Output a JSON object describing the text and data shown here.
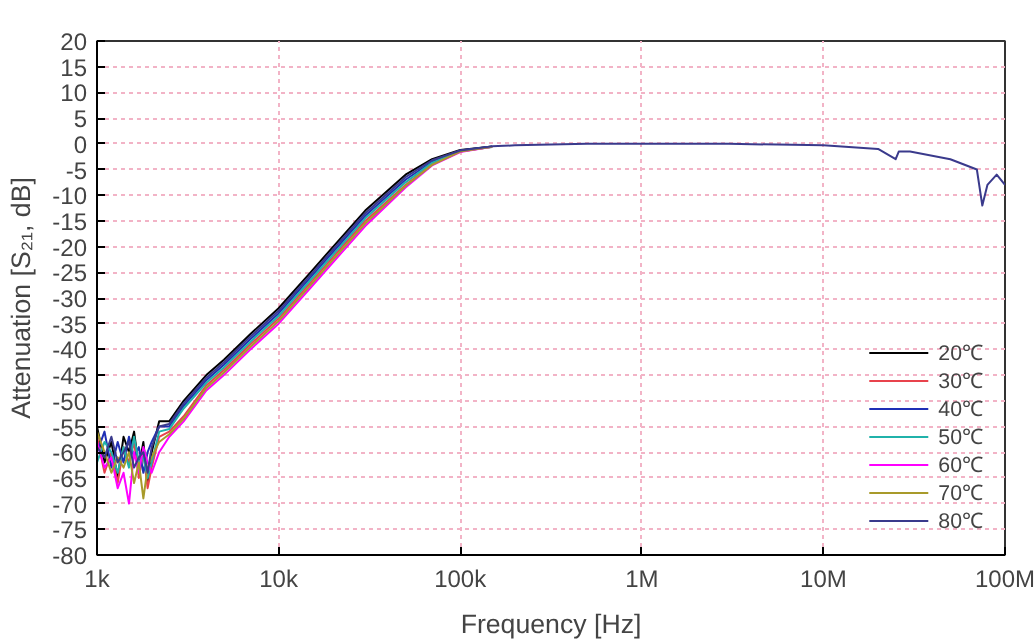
{
  "chart_data": {
    "type": "line",
    "xlabel": "Frequency [Hz]",
    "ylabel": "Attenuation [S₂₁, dB]",
    "log": "x",
    "xlim": [
      1000,
      100000000
    ],
    "ylim": [
      -80,
      20
    ],
    "xticks": [
      {
        "value": 1000,
        "label": "1k"
      },
      {
        "value": 10000,
        "label": "10k"
      },
      {
        "value": 100000,
        "label": "100k"
      },
      {
        "value": 1000000,
        "label": "1M"
      },
      {
        "value": 10000000,
        "label": "10M"
      },
      {
        "value": 100000000,
        "label": "100M"
      }
    ],
    "yticks": [
      -80,
      -75,
      -70,
      -65,
      -60,
      -55,
      -50,
      -45,
      -40,
      -35,
      -30,
      -25,
      -20,
      -15,
      -10,
      -5,
      0,
      5,
      10,
      15,
      20
    ],
    "grid": true,
    "legend": "bottom right",
    "marker": "none",
    "line_style": "solid",
    "x": [
      1000,
      1100,
      1200,
      1300,
      1400,
      1500,
      1600,
      1700,
      1800,
      1900,
      2000,
      2200,
      2500,
      3000,
      4000,
      5000,
      7000,
      10000,
      15000,
      20000,
      30000,
      50000,
      70000,
      100000,
      150000,
      200000,
      500000,
      1000000,
      3000000,
      10000000,
      20000000,
      25000000,
      26000000,
      30000000,
      50000000,
      70000000,
      75000000,
      80000000,
      90000000,
      100000000
    ],
    "series": [
      {
        "name": "20℃",
        "color": "#000000",
        "values": [
          -55,
          -62,
          -58,
          -65,
          -57,
          -60,
          -56,
          -63,
          -58,
          -66,
          -60,
          -54,
          -54,
          -50,
          -45,
          -42,
          -37,
          -32,
          -25,
          -20,
          -13,
          -6,
          -3,
          -1.2,
          -0.5,
          null,
          null,
          null,
          null,
          null,
          null,
          null,
          null,
          null,
          null,
          null,
          null,
          null,
          null,
          null
        ]
      },
      {
        "name": "30℃",
        "color": "#e8434c",
        "values": [
          -57,
          -64,
          -60,
          -66,
          -59,
          -62,
          -58,
          -65,
          -60,
          -67,
          -63,
          -57,
          -56,
          -53,
          -47,
          -44,
          -39,
          -34,
          -27,
          -22,
          -15,
          -8,
          -4,
          -1.5,
          -0.6,
          null,
          null,
          null,
          null,
          null,
          null,
          null,
          null,
          null,
          null,
          null,
          null,
          null,
          null,
          null
        ]
      },
      {
        "name": "40℃",
        "color": "#1f2fb5",
        "values": [
          -60,
          -56,
          -63,
          -58,
          -62,
          -57,
          -61,
          -59,
          -64,
          -60,
          -58,
          -55,
          -55,
          -51,
          -46,
          -43,
          -38,
          -33,
          -26,
          -21,
          -14,
          -7,
          -3.5,
          -1.3,
          -0.5,
          null,
          null,
          null,
          null,
          null,
          null,
          null,
          null,
          null,
          null,
          null,
          null,
          null,
          null,
          null
        ]
      },
      {
        "name": "50℃",
        "color": "#20b2aa",
        "values": [
          -62,
          -58,
          -60,
          -64,
          -59,
          -63,
          -57,
          -62,
          -61,
          -65,
          -62,
          -56,
          -55.5,
          -51.5,
          -46.5,
          -43.5,
          -38.5,
          -33.5,
          -26.5,
          -21.5,
          -14.5,
          -7.5,
          -3.7,
          -1.4,
          -0.6,
          null,
          null,
          null,
          null,
          null,
          null,
          null,
          null,
          null,
          null,
          null,
          null,
          null,
          null,
          null
        ]
      },
      {
        "name": "60℃",
        "color": "#ff00ff",
        "values": [
          -58,
          -63,
          -61,
          -67,
          -64,
          -70,
          -60,
          -64,
          -59,
          -62,
          -64,
          -60,
          -57,
          -54,
          -48,
          -45,
          -40,
          -35,
          -28,
          -23,
          -16,
          -8.5,
          -4.2,
          -1.6,
          -0.6,
          null,
          null,
          null,
          null,
          null,
          null,
          null,
          null,
          null,
          null,
          null,
          null,
          null,
          null,
          null
        ]
      },
      {
        "name": "70℃",
        "color": "#a89a2a",
        "values": [
          -56,
          -60,
          -64,
          -61,
          -63,
          -60,
          -66,
          -62,
          -69,
          -63,
          -61,
          -58,
          -56.5,
          -53.5,
          -47.5,
          -44.5,
          -39.5,
          -34.5,
          -27.5,
          -22.5,
          -15.5,
          -8.2,
          -4.1,
          -1.5,
          -0.6,
          null,
          null,
          null,
          null,
          null,
          null,
          null,
          null,
          null,
          null,
          null,
          null,
          null,
          null,
          null
        ]
      },
      {
        "name": "80℃",
        "color": "#3a3a8c",
        "values": [
          -59,
          -61,
          -57,
          -62,
          -60,
          -58,
          -63,
          -61,
          -60,
          -64,
          -59,
          -55,
          -54.5,
          -50.5,
          -45.5,
          -42.5,
          -37.5,
          -32.5,
          -25.5,
          -20.5,
          -13.5,
          -6.5,
          -3.2,
          -1.3,
          -0.5,
          -0.3,
          0,
          0,
          0,
          -0.3,
          -1,
          -3,
          -1.5,
          -1.5,
          -3,
          -5,
          -12,
          -8,
          -6,
          -8
        ]
      }
    ]
  }
}
